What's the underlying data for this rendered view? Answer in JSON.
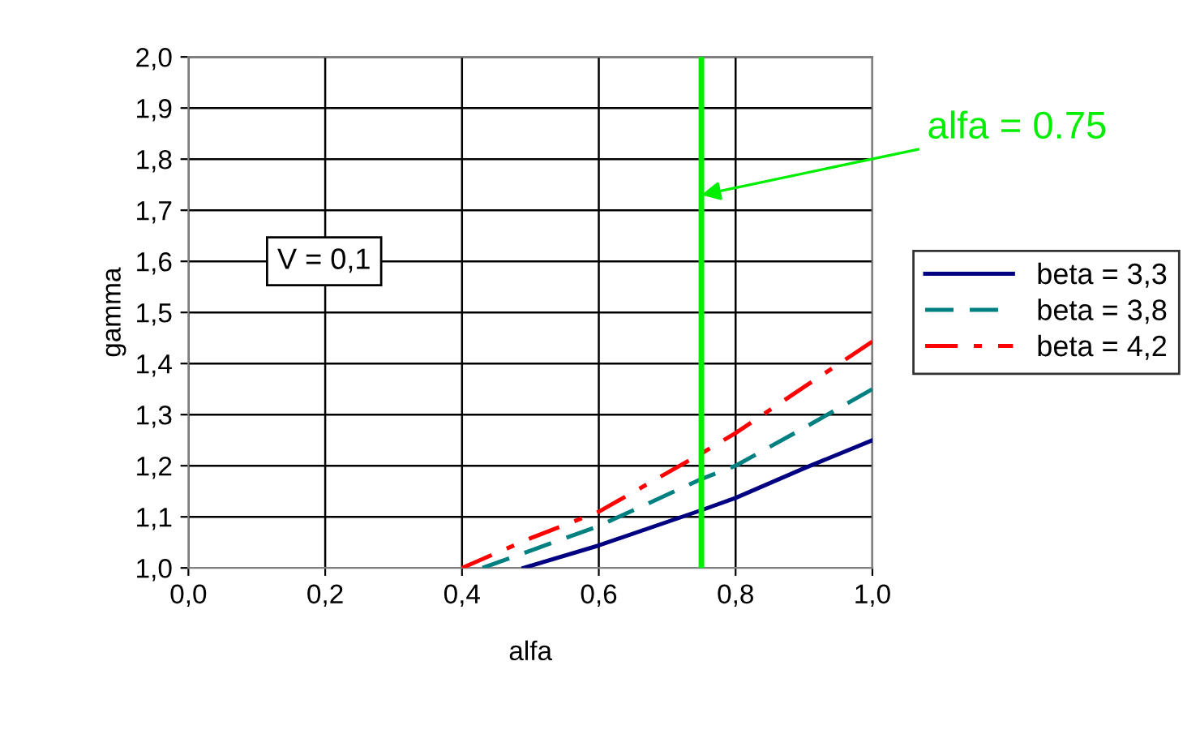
{
  "chart_data": {
    "type": "line",
    "xlabel": "alfa",
    "ylabel": "gamma",
    "xlim": [
      0.0,
      1.0
    ],
    "ylim": [
      1.0,
      2.0
    ],
    "xticks": [
      {
        "value": 0.0,
        "label": "0,0"
      },
      {
        "value": 0.2,
        "label": "0,2"
      },
      {
        "value": 0.4,
        "label": "0,4"
      },
      {
        "value": 0.6,
        "label": "0,6"
      },
      {
        "value": 0.8,
        "label": "0,8"
      },
      {
        "value": 1.0,
        "label": "1,0"
      }
    ],
    "yticks": [
      {
        "value": 1.0,
        "label": "1,0"
      },
      {
        "value": 1.1,
        "label": "1,1"
      },
      {
        "value": 1.2,
        "label": "1,2"
      },
      {
        "value": 1.3,
        "label": "1,3"
      },
      {
        "value": 1.4,
        "label": "1,4"
      },
      {
        "value": 1.5,
        "label": "1,5"
      },
      {
        "value": 1.6,
        "label": "1,6"
      },
      {
        "value": 1.7,
        "label": "1,7"
      },
      {
        "value": 1.8,
        "label": "1,8"
      },
      {
        "value": 1.9,
        "label": "1,9"
      },
      {
        "value": 2.0,
        "label": "2,0"
      }
    ],
    "grid": true,
    "legend": "right",
    "marker": "none",
    "series": [
      {
        "name": "beta = 3,3",
        "color": "#000080",
        "line_style": "solid",
        "x": [
          0.49,
          0.6,
          0.75,
          0.8,
          0.9,
          1.0
        ],
        "values": [
          1.0,
          1.044,
          1.113,
          1.137,
          1.195,
          1.25
        ]
      },
      {
        "name": "beta = 3,8",
        "color": "#008080",
        "line_style": "dashed",
        "x": [
          0.43,
          0.6,
          0.75,
          0.8,
          0.9,
          1.0
        ],
        "values": [
          1.0,
          1.082,
          1.174,
          1.2,
          1.274,
          1.35
        ]
      },
      {
        "name": "beta = 4,2",
        "color": "#ff0000",
        "line_style": "dashdot",
        "x": [
          0.4,
          0.5,
          0.6,
          0.75,
          0.8,
          0.9,
          1.0
        ],
        "values": [
          1.0,
          1.058,
          1.11,
          1.224,
          1.264,
          1.354,
          1.443
        ]
      }
    ],
    "ref_lines": [
      {
        "axis": "x",
        "value": 0.75,
        "color": "#00ee00",
        "line_style": "solid"
      }
    ],
    "annotations": [
      {
        "text": "alfa = 0.75",
        "x": 0.75,
        "y": 1.73
      },
      "V = 0,1"
    ]
  }
}
